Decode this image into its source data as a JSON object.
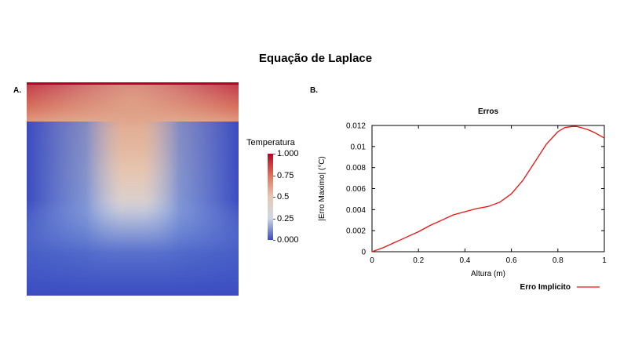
{
  "page": {
    "title": "Equação de Laplace",
    "panel_a_label": "A.",
    "panel_b_label": "B."
  },
  "colorbar": {
    "title": "Temperatura",
    "ticks": [
      {
        "label": "1.000",
        "value": 1.0
      },
      {
        "label": "0.75",
        "value": 0.75
      },
      {
        "label": "0.5",
        "value": 0.5
      },
      {
        "label": "0.25",
        "value": 0.25
      },
      {
        "label": "0.000",
        "value": 0.0
      }
    ],
    "colors": {
      "high": "#b40426",
      "mid": "#e8c8b4",
      "low": "#3b4cc0"
    }
  },
  "chart_data": [
    {
      "type": "heatmap",
      "title": "",
      "colorbar_title": "Temperatura",
      "value_range": [
        0,
        1
      ],
      "description_values": {
        "top_edge": 1.0,
        "left_edge": 0.0,
        "right_edge": 0.0,
        "bottom_edge": 0.0
      }
    },
    {
      "type": "line",
      "title": "Erros",
      "xlabel": "Altura (m)",
      "ylabel": "|Erro Maximo| (°C)",
      "xlim": [
        0,
        1
      ],
      "ylim": [
        0,
        0.012
      ],
      "xticks": [
        "0",
        "0.2",
        "0.4",
        "0.6",
        "0.8",
        "1"
      ],
      "yticks": [
        "0",
        "0.002",
        "0.004",
        "0.006",
        "0.008",
        "0.01",
        "0.012"
      ],
      "legend": "bottom-right",
      "series": [
        {
          "name": "Erro Implicito",
          "color": "#ee1111",
          "x": [
            0,
            0.05,
            0.1,
            0.15,
            0.2,
            0.25,
            0.3,
            0.35,
            0.4,
            0.45,
            0.5,
            0.55,
            0.6,
            0.65,
            0.7,
            0.75,
            0.8,
            0.83,
            0.86,
            0.88,
            0.9,
            0.93,
            0.96,
            1.0
          ],
          "y": [
            0,
            0.0004,
            0.0009,
            0.0014,
            0.0019,
            0.0025,
            0.003,
            0.0035,
            0.0038,
            0.0041,
            0.0043,
            0.0047,
            0.0055,
            0.0068,
            0.0085,
            0.0102,
            0.0114,
            0.0118,
            0.0119,
            0.0119,
            0.0118,
            0.0116,
            0.0113,
            0.0108
          ]
        }
      ]
    }
  ]
}
